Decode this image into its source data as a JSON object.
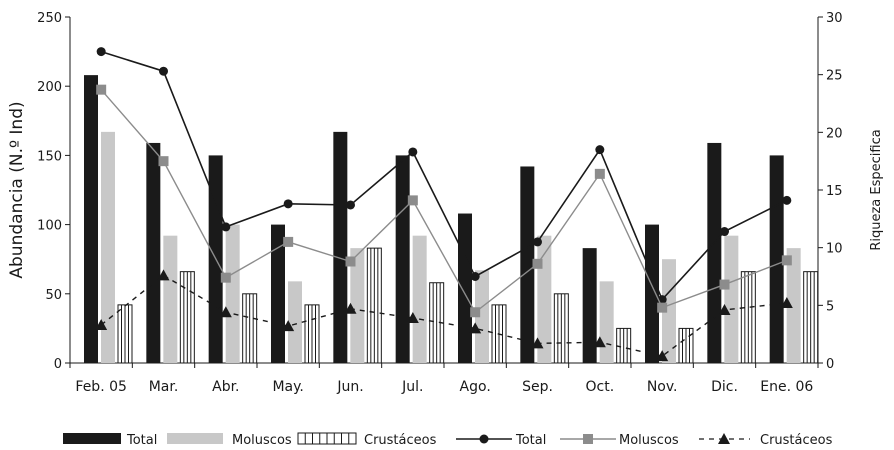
{
  "chart_data": {
    "type": "bar",
    "categories": [
      "Feb. 05",
      "Mar.",
      "Abr.",
      "May.",
      "Jun.",
      "Jul.",
      "Ago.",
      "Sep.",
      "Oct.",
      "Nov.",
      "Dic.",
      "Ene. 06"
    ],
    "ylabel": "Abundancia (N.º Ind)",
    "ylabel_right": "Riqueza Especifica",
    "ylim": [
      0,
      250
    ],
    "ylim_right": [
      0,
      30
    ],
    "yticks": [
      "0",
      "50",
      "100",
      "150",
      "200",
      "250"
    ],
    "yticks_right": [
      "0",
      "5",
      "10",
      "15",
      "20",
      "25",
      "30"
    ],
    "bar_series": [
      {
        "name": "Total",
        "values": [
          208,
          159,
          150,
          100,
          167,
          150,
          108,
          142,
          83,
          100,
          159,
          150
        ],
        "color": "#1a1a1a"
      },
      {
        "name": "Moluscos",
        "values": [
          167,
          92,
          100,
          59,
          83,
          92,
          67,
          92,
          59,
          75,
          92,
          83
        ],
        "color": "#c8c8c8"
      },
      {
        "name": "Crustáceos",
        "values": [
          42,
          66,
          50,
          42,
          83,
          58,
          42,
          50,
          25,
          25,
          66,
          66
        ],
        "color": "#ffffff"
      }
    ],
    "line_series": [
      {
        "name": "Total",
        "values": [
          27,
          25.3,
          11.8,
          13.8,
          13.7,
          18.3,
          7.5,
          10.5,
          18.5,
          5.5,
          11.4,
          14.1
        ],
        "color": "#1a1a1a",
        "marker": "circle"
      },
      {
        "name": "Moluscos",
        "values": [
          23.7,
          17.5,
          7.4,
          10.5,
          8.8,
          14.1,
          4.4,
          8.6,
          16.4,
          4.8,
          6.8,
          8.9
        ],
        "color": "#8c8c8c",
        "marker": "square"
      },
      {
        "name": "Crustáceos",
        "values": [
          3.3,
          7.6,
          4.4,
          3.2,
          4.7,
          3.9,
          3.0,
          1.7,
          1.8,
          0.6,
          4.6,
          5.2
        ],
        "color": "#1a1a1a",
        "marker": "triangle",
        "dashed": true
      }
    ],
    "legend_position": "bottom"
  }
}
